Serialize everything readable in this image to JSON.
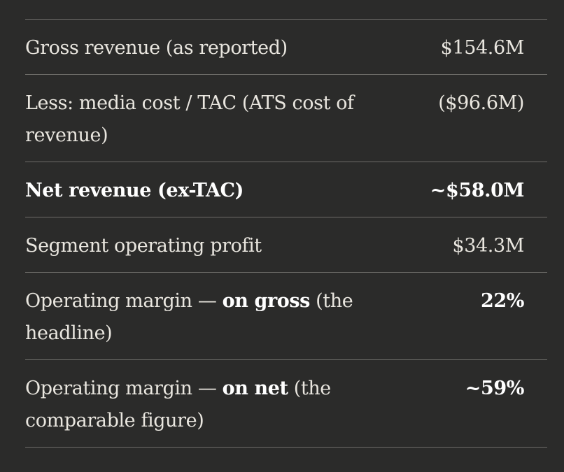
{
  "rows": [
    {
      "label": "Gross revenue (as reported)",
      "value": "$154.6M",
      "bold": false,
      "lines": 1
    },
    {
      "label": "Less: media cost / TAC (ATS cost of revenue)",
      "value": "($96.6M)",
      "bold": false,
      "lines": 2
    },
    {
      "label": "Net revenue (ex-TAC)",
      "value": "~$58.0M",
      "bold": true,
      "lines": 1
    },
    {
      "label": "Segment operating profit",
      "value": "$34.3M",
      "bold": false,
      "lines": 1
    },
    {
      "label_prefix": "Operating margin — ",
      "label_strong": "on gross",
      "label_suffix": " (the headline)",
      "value": "22%",
      "bold": false,
      "value_bold": true,
      "lines": 2
    },
    {
      "label_prefix": "Operating margin — ",
      "label_strong": "on net",
      "label_suffix": " (the comparable figure)",
      "value": "~59%",
      "bold": false,
      "value_bold": true,
      "lines": 2
    }
  ]
}
